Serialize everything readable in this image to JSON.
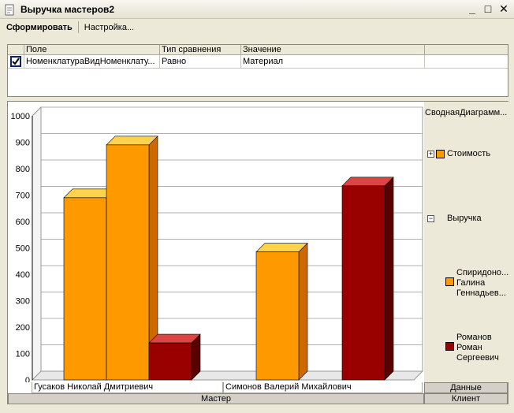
{
  "window": {
    "title": "Выручка мастеров2",
    "controls": {
      "minimize": "_",
      "maximize": "□",
      "close": "✕"
    }
  },
  "toolbar": {
    "generate_label": "Сформировать",
    "settings_label": "Настройка..."
  },
  "filter": {
    "headers": [
      "Поле",
      "Тип сравнения",
      "Значение"
    ],
    "rows": [
      {
        "checked": true,
        "field": "НоменклатураВидНоменклату...",
        "comparison": "Равно",
        "value": "Материал"
      }
    ]
  },
  "legend": {
    "title": "СводнаяДиаграмм...",
    "groups": [
      {
        "name": "Стоимость",
        "expanded": false,
        "color": "#ff9900"
      },
      {
        "name": "Выручка",
        "expanded": true
      }
    ],
    "entries": [
      {
        "line1": "Спиридоно...",
        "line2": "Галина",
        "line3": "Геннадьев...",
        "color": "#ff9900"
      },
      {
        "line1": "Романов",
        "line2": "Роман",
        "line3": "Сергеевич",
        "color": "#990000"
      }
    ]
  },
  "axes": {
    "data_button": "Данные",
    "row_axis": "Мастер",
    "column_axis": "Клиент"
  },
  "chart_data": {
    "type": "bar",
    "ylim": [
      0,
      1000
    ],
    "yticks": [
      0,
      100,
      200,
      300,
      400,
      500,
      600,
      700,
      800,
      900,
      1000
    ],
    "grid": true,
    "legend_position": "right",
    "categories": [
      "Гусаков Николай Дмитриевич",
      "Симонов Валерий Михайлович"
    ],
    "bars": [
      {
        "category": 0,
        "value": 690,
        "color": "#ff9900",
        "top_color": "#ffd24d",
        "side_color": "#cc6a00"
      },
      {
        "category": 0,
        "value": 890,
        "color": "#ff9900",
        "top_color": "#ffd24d",
        "side_color": "#cc6a00"
      },
      {
        "category": 0,
        "value": 140,
        "color": "#990000",
        "top_color": "#dd4444",
        "side_color": "#5a0000"
      },
      {
        "category": 1,
        "value": 485,
        "color": "#ff9900",
        "top_color": "#ffd24d",
        "side_color": "#cc6a00"
      },
      {
        "category": 1,
        "value": 735,
        "color": "#990000",
        "top_color": "#dd4444",
        "side_color": "#5a0000"
      }
    ]
  }
}
